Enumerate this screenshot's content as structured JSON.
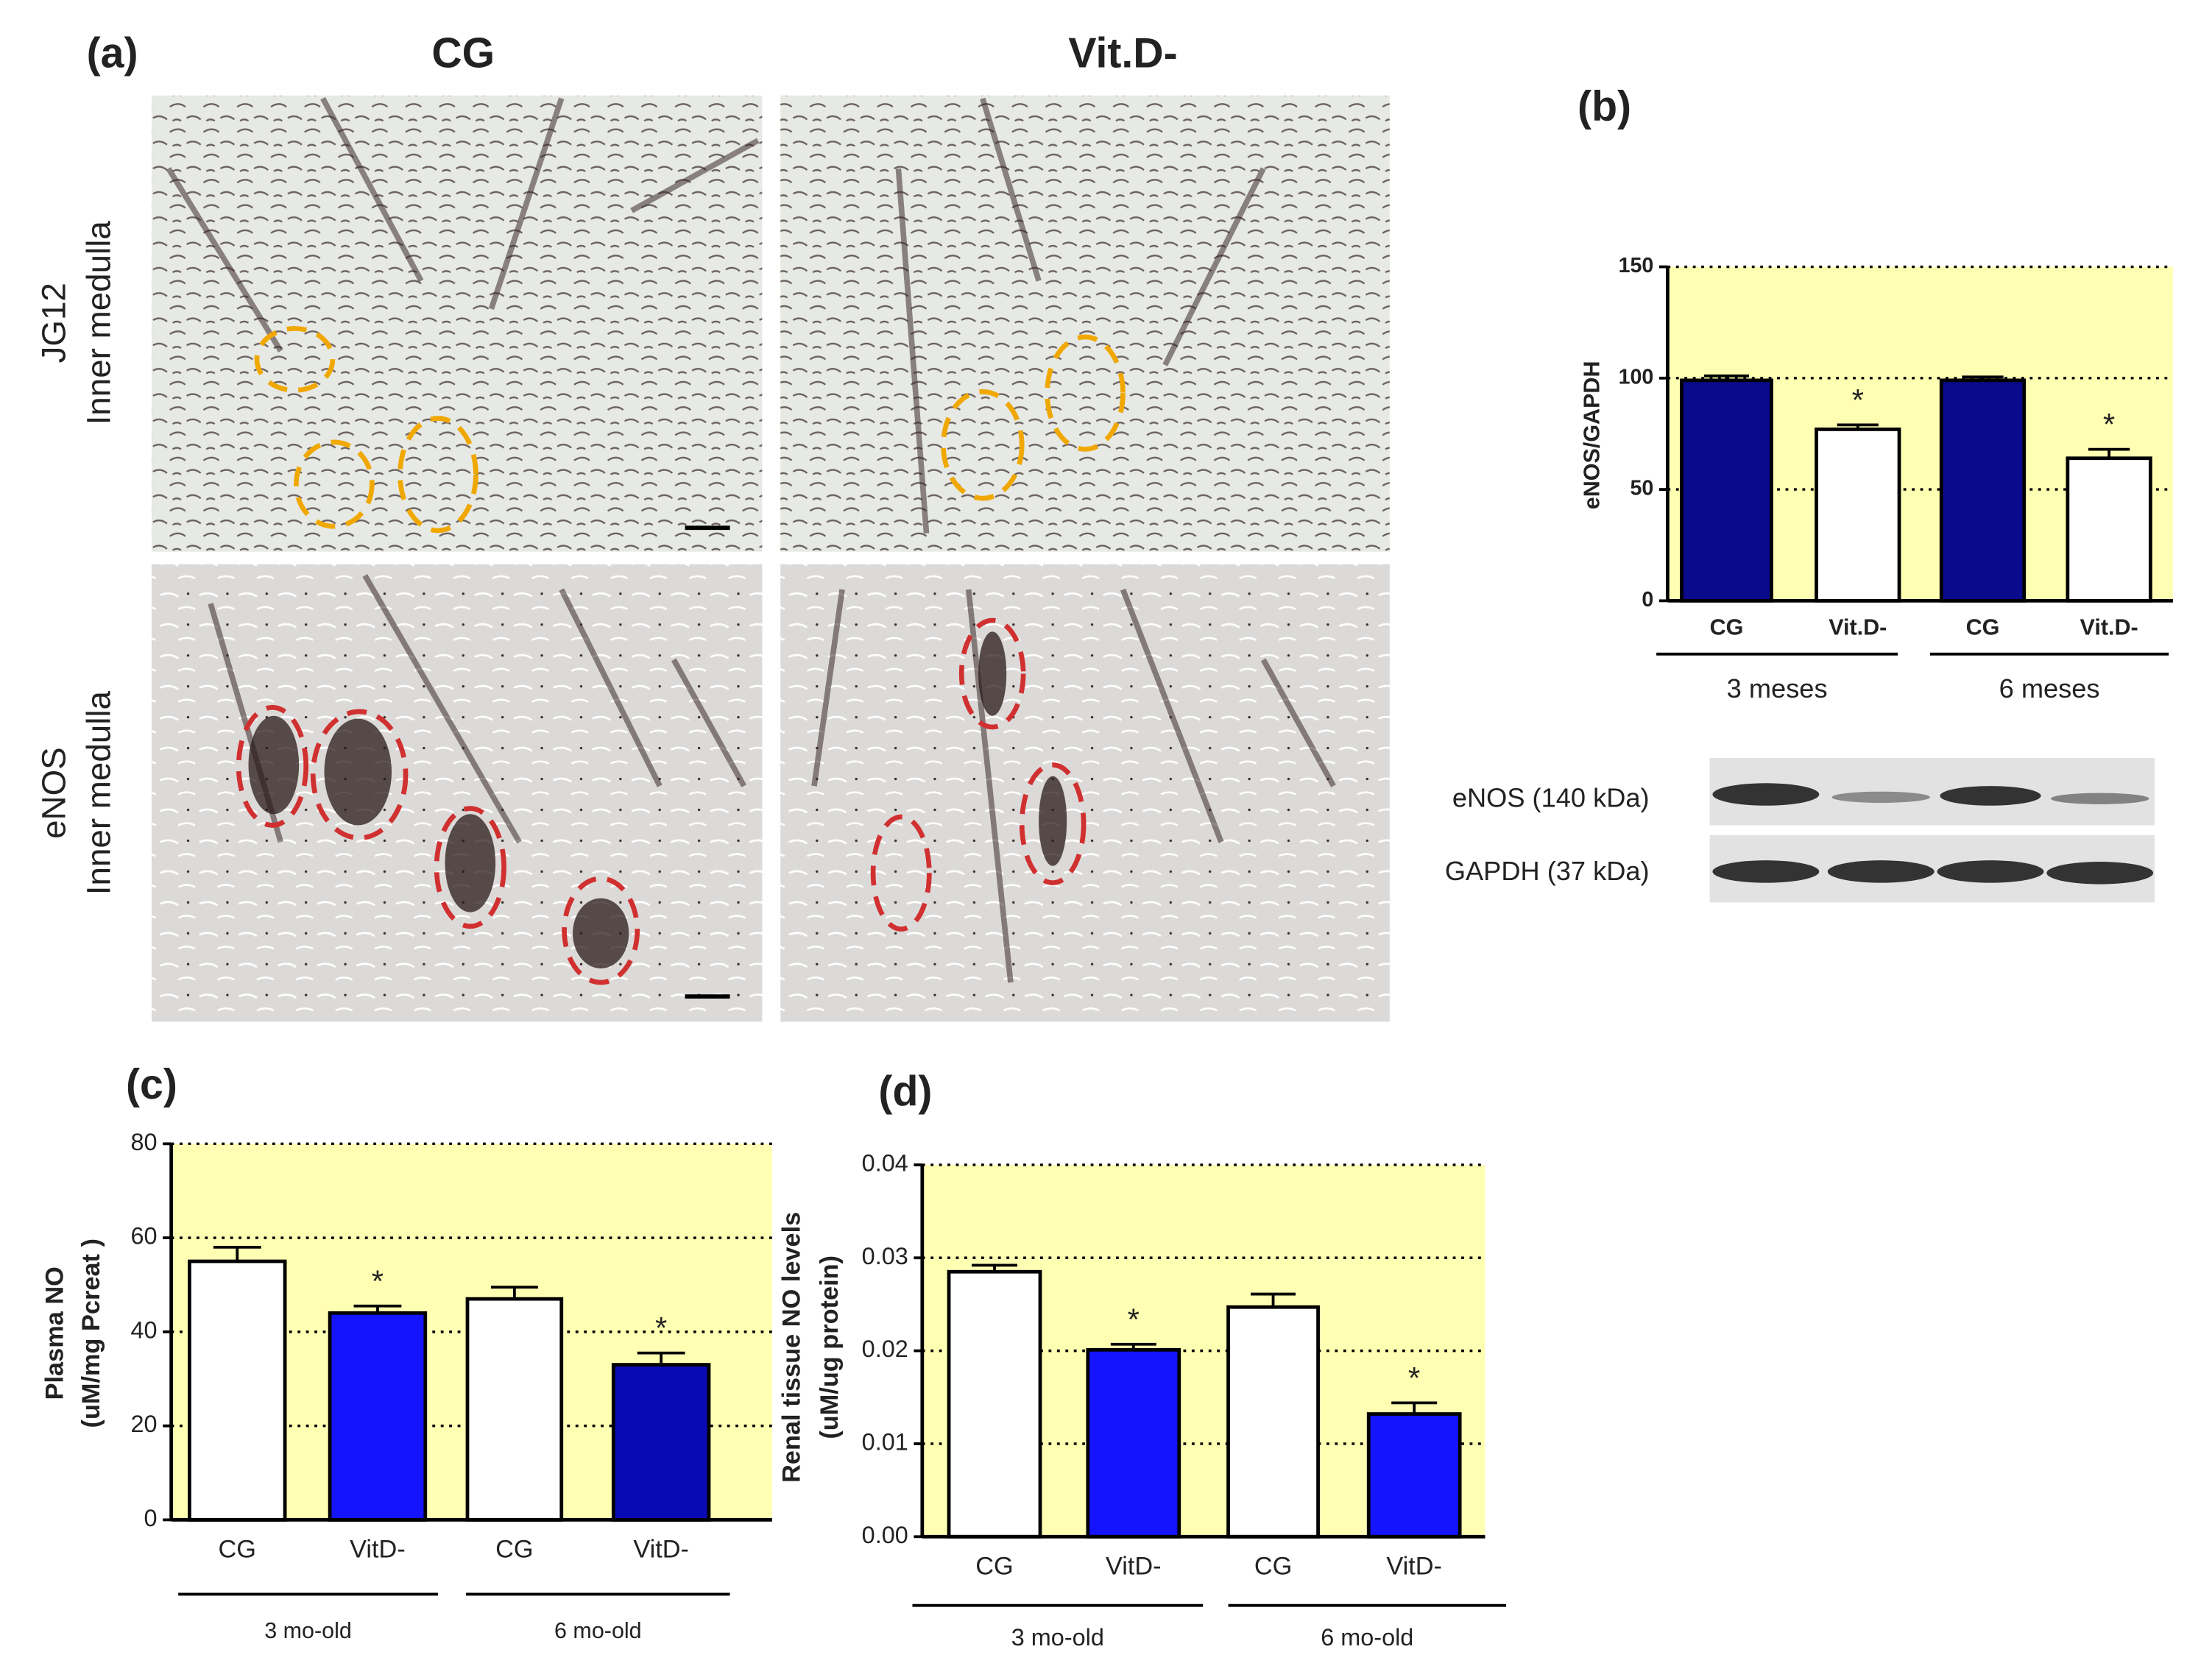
{
  "figure": {
    "panels": [
      "(a)",
      "(b)",
      "(c)",
      "(d)"
    ],
    "micrograph_columns": [
      "CG",
      "Vit.D-"
    ],
    "micrograph_rows": [
      [
        "JG12",
        "Inner medulla"
      ],
      [
        "eNOS",
        "Inner medulla"
      ]
    ],
    "blot_labels": [
      "eNOS (140 kDa)",
      "GAPDH (37 kDa)"
    ]
  },
  "chart_data": [
    {
      "type": "bar",
      "ylabel": [
        "eNOS/GAPDH"
      ],
      "categories": [
        "CG",
        "Vit.D-",
        "CG",
        "Vit.D-"
      ],
      "groups": [
        "3 meses",
        "6 meses"
      ],
      "values": [
        99,
        77,
        99,
        64
      ],
      "errors": [
        2,
        2,
        1.5,
        4
      ],
      "colors": [
        "#0a0a8c",
        "#ffffff",
        "#0a0a8c",
        "#ffffff"
      ],
      "markers": [
        null,
        "*",
        null,
        "*"
      ],
      "ylim": [
        0,
        150
      ],
      "yticks": [
        0,
        50,
        100,
        150
      ],
      "grid": true,
      "background": "#ffffb4"
    },
    {
      "type": "bar",
      "ylabel": [
        "Plasma NO",
        "(uM/mg Pcreat )"
      ],
      "categories": [
        "CG",
        "VitD-",
        "CG",
        "VitD-"
      ],
      "groups": [
        "3 mo-old",
        "6 mo-old"
      ],
      "values": [
        55,
        44,
        47,
        33
      ],
      "errors": [
        3,
        1.5,
        2.5,
        2.5
      ],
      "colors": [
        "#ffffff",
        "#1414ff",
        "#ffffff",
        "#0a0ab4"
      ],
      "markers": [
        null,
        "*",
        null,
        "*"
      ],
      "ylim": [
        0,
        80
      ],
      "yticks": [
        0,
        20,
        40,
        60,
        80
      ],
      "grid": true,
      "background": "#ffffb4"
    },
    {
      "type": "bar",
      "ylabel": [
        "Renal tissue NO levels",
        "(uM/ug protein)"
      ],
      "categories": [
        "CG",
        "VitD-",
        "CG",
        "VitD-"
      ],
      "groups": [
        "3 mo-old",
        "6 mo-old"
      ],
      "values": [
        0.0285,
        0.0201,
        0.0247,
        0.0132
      ],
      "errors": [
        0.0007,
        0.0006,
        0.0014,
        0.0012
      ],
      "colors": [
        "#ffffff",
        "#1414ff",
        "#ffffff",
        "#1414ff"
      ],
      "markers": [
        null,
        "*",
        null,
        "*"
      ],
      "ylim": [
        0,
        0.04
      ],
      "yticks": [
        {
          "value": 0,
          "label": "0.00"
        },
        0.01,
        0.02,
        0.03,
        0.04
      ],
      "grid": true,
      "background": "#ffffb4"
    }
  ]
}
